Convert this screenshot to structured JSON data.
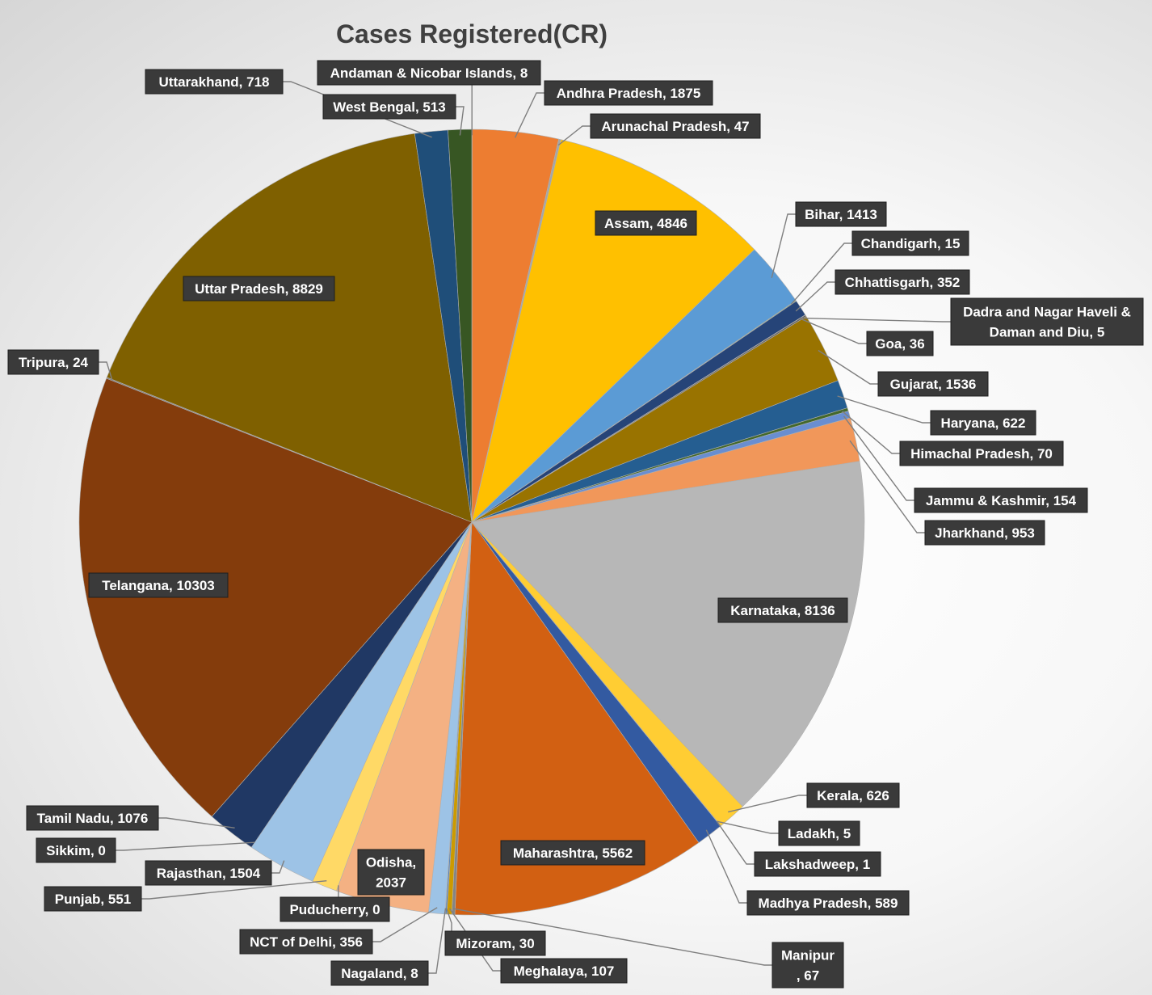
{
  "chart_data": {
    "type": "pie",
    "title": "Cases Registered(CR)",
    "slices": [
      {
        "label": "Andaman & Nicobar Islands",
        "value": 8,
        "color": "#2e4a1f"
      },
      {
        "label": "Andhra Pradesh",
        "value": 1875,
        "color": "#ed7d31"
      },
      {
        "label": "Arunachal Pradesh",
        "value": 47,
        "color": "#a5a5a5"
      },
      {
        "label": "Assam",
        "value": 4846,
        "color": "#ffc000"
      },
      {
        "label": "Bihar",
        "value": 1413,
        "color": "#5b9bd5"
      },
      {
        "label": "Chandigarh",
        "value": 15,
        "color": "#70ad47"
      },
      {
        "label": "Chhattisgarh",
        "value": 352,
        "color": "#264478"
      },
      {
        "label": "Dadra and Nagar Haveli & Daman and Diu",
        "value": 5,
        "color": "#9e480e"
      },
      {
        "label": "Goa",
        "value": 36,
        "color": "#636363"
      },
      {
        "label": "Gujarat",
        "value": 1536,
        "color": "#997300"
      },
      {
        "label": "Haryana",
        "value": 622,
        "color": "#255e91"
      },
      {
        "label": "Himachal Pradesh",
        "value": 70,
        "color": "#43682b"
      },
      {
        "label": "Jammu & Kashmir",
        "value": 154,
        "color": "#698ed0"
      },
      {
        "label": "Jharkhand",
        "value": 953,
        "color": "#f1975a"
      },
      {
        "label": "Karnataka",
        "value": 8136,
        "color": "#b7b7b7"
      },
      {
        "label": "Kerala",
        "value": 626,
        "color": "#ffcd33"
      },
      {
        "label": "Ladakh",
        "value": 5,
        "color": "#7cafdd"
      },
      {
        "label": "Lakshadweep",
        "value": 1,
        "color": "#8cc168"
      },
      {
        "label": "Madhya Pradesh",
        "value": 589,
        "color": "#335aa1"
      },
      {
        "label": "Maharashtra",
        "value": 5562,
        "color": "#d26012"
      },
      {
        "label": "Manipur",
        "value": 67,
        "color": "#848484"
      },
      {
        "label": "Meghalaya",
        "value": 107,
        "color": "#cc9a00"
      },
      {
        "label": "Mizoram",
        "value": 30,
        "color": "#4f81bd"
      },
      {
        "label": "Nagaland",
        "value": 8,
        "color": "#5a8f3a"
      },
      {
        "label": "NCT of Delhi",
        "value": 356,
        "color": "#9dc3e6"
      },
      {
        "label": "Odisha",
        "value": 2037,
        "color": "#f4b183"
      },
      {
        "label": "Puducherry",
        "value": 0,
        "color": "#c9c9c9"
      },
      {
        "label": "Punjab",
        "value": 551,
        "color": "#ffd966"
      },
      {
        "label": "Rajasthan",
        "value": 1504,
        "color": "#9dc3e6"
      },
      {
        "label": "Sikkim",
        "value": 0,
        "color": "#a9d18e"
      },
      {
        "label": "Tamil Nadu",
        "value": 1076,
        "color": "#203864"
      },
      {
        "label": "Telangana",
        "value": 10303,
        "color": "#843c0c"
      },
      {
        "label": "Tripura",
        "value": 24,
        "color": "#7b7b7b"
      },
      {
        "label": "Uttar Pradesh",
        "value": 8829,
        "color": "#7f6000"
      },
      {
        "label": "Uttarakhand",
        "value": 718,
        "color": "#1f4e79"
      },
      {
        "label": "West Bengal",
        "value": 513,
        "color": "#375623"
      }
    ],
    "label_placement": "outside-with-leader-lines"
  }
}
